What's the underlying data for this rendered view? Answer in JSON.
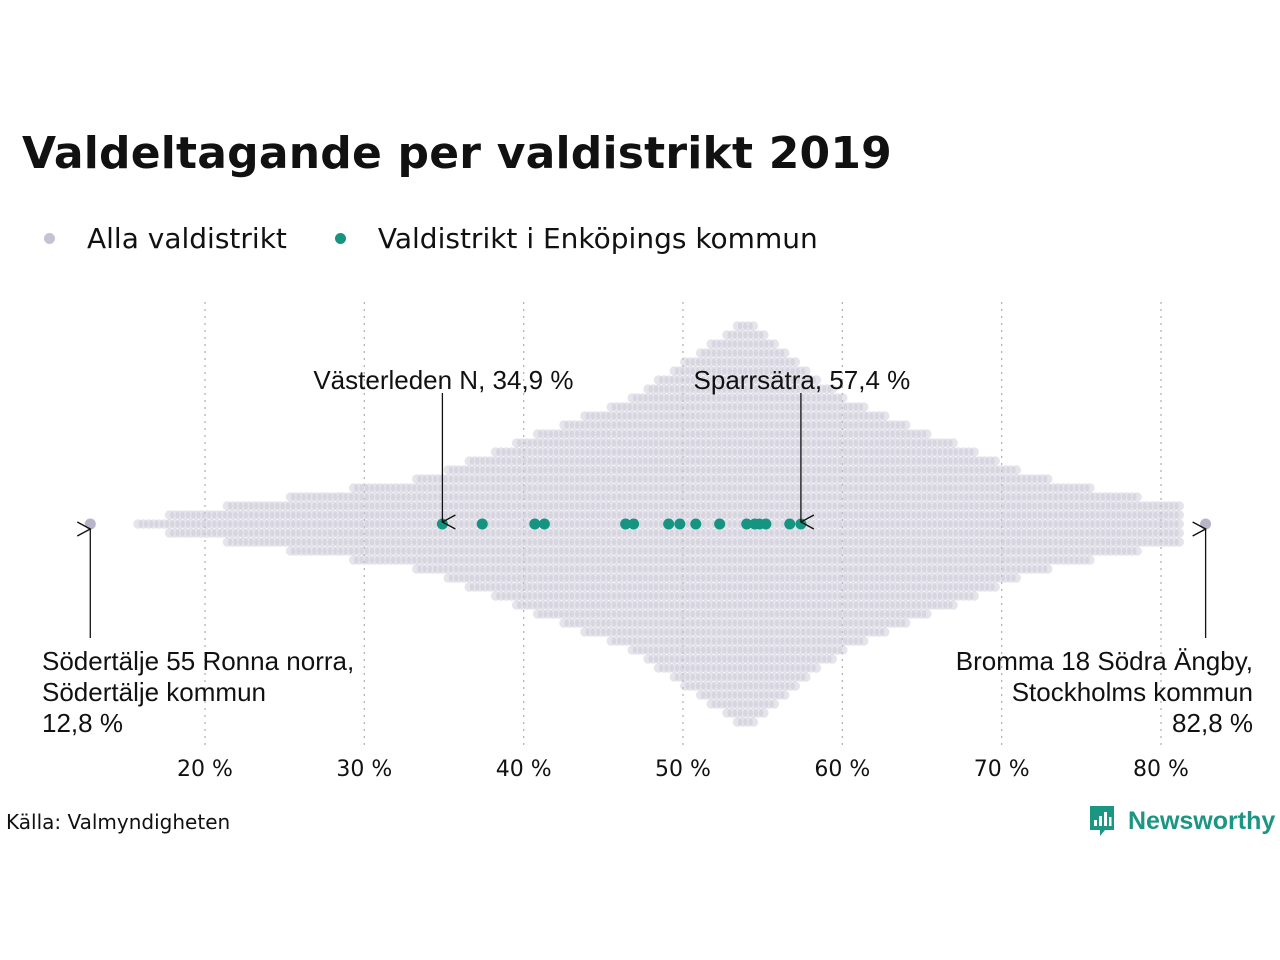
{
  "chart_data": {
    "type": "scatter",
    "title": "Valdeltagande per valdistrikt 2019",
    "xlim": [
      10,
      85
    ],
    "x_ticks": [
      20,
      30,
      40,
      50,
      60,
      70,
      80
    ],
    "tick_suffix": " %",
    "grid": "vertical dotted",
    "legend_position": "top-left",
    "series": [
      {
        "name": "Alla valdistrikt",
        "color": "#c5c3d3",
        "distribution": "beeswarm of all districts, densest around 54 %",
        "extremes": [
          12.8,
          82.8
        ]
      },
      {
        "name": "Valdistrikt i Enköpings kommun",
        "color": "#159482",
        "x": [
          34.9,
          37.4,
          40.7,
          41.3,
          46.4,
          46.9,
          49.1,
          49.8,
          50.8,
          52.3,
          54.0,
          54.5,
          54.8,
          55.2,
          56.7,
          57.4
        ]
      }
    ],
    "annotations": [
      {
        "x": 34.9,
        "lines": [
          "Västerleden N, 34,9 %"
        ],
        "position": "above"
      },
      {
        "x": 57.4,
        "lines": [
          "Sparrsätra, 57,4 %"
        ],
        "position": "above"
      },
      {
        "x": 12.8,
        "lines": [
          "Södertälje 55 Ronna norra,",
          "Södertälje kommun",
          "12,8 %"
        ],
        "position": "below-left"
      },
      {
        "x": 82.8,
        "lines": [
          "Bromma 18 Södra Ängby,",
          "Stockholms kommun",
          "82,8 %"
        ],
        "position": "below-right"
      }
    ]
  },
  "legend": {
    "all_label": "Alla valdistrikt",
    "local_label": "Valdistrikt i Enköpings kommun",
    "all_color": "#c5c3d3",
    "local_color": "#159482"
  },
  "source": "Källa: Valmyndigheten",
  "brand": {
    "name": "Newsworthy",
    "icon": "newsworthy-logo-icon"
  }
}
